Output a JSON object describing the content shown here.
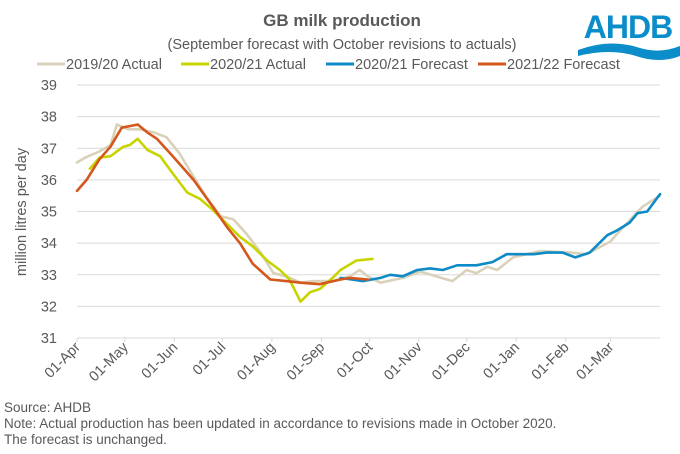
{
  "logo": {
    "text": "AHDB",
    "color": "#0a8dc9"
  },
  "footer": {
    "source": "Source: AHDB",
    "note_line1": "Note: Actual production has been updated in accordance to revisions made in October 2020.",
    "note_line2": "The forecast is unchanged."
  },
  "chart_data": {
    "type": "line",
    "title": "GB milk production",
    "subtitle": "(September forecast with October revisions to actuals)",
    "xlabel": "",
    "ylabel": "million litres per day",
    "x_unit": "days since 01-Apr",
    "xlim": [
      0,
      365
    ],
    "ylim": [
      31,
      39
    ],
    "yticks": [
      "31",
      "32",
      "33",
      "34",
      "35",
      "36",
      "37",
      "38",
      "39"
    ],
    "xticks": [
      {
        "label": "01-Apr",
        "day": 0
      },
      {
        "label": "01-May",
        "day": 30
      },
      {
        "label": "01-Jun",
        "day": 61
      },
      {
        "label": "01-Jul",
        "day": 91
      },
      {
        "label": "01-Aug",
        "day": 122
      },
      {
        "label": "01-Sep",
        "day": 153
      },
      {
        "label": "01-Oct",
        "day": 183
      },
      {
        "label": "01-Nov",
        "day": 214
      },
      {
        "label": "01-Dec",
        "day": 244
      },
      {
        "label": "01-Jan",
        "day": 275
      },
      {
        "label": "01-Feb",
        "day": 306
      },
      {
        "label": "01-Mar",
        "day": 334
      }
    ],
    "grid": true,
    "legend_position": "top",
    "series": [
      {
        "name": "2019/20 Actual",
        "color": "#d9d1b9",
        "points": [
          [
            0,
            36.55
          ],
          [
            5,
            36.7
          ],
          [
            14,
            36.9
          ],
          [
            21,
            37.1
          ],
          [
            25,
            37.75
          ],
          [
            32,
            37.6
          ],
          [
            39,
            37.6
          ],
          [
            48,
            37.5
          ],
          [
            56,
            37.35
          ],
          [
            64,
            36.85
          ],
          [
            73,
            36.1
          ],
          [
            81,
            35.45
          ],
          [
            90,
            34.85
          ],
          [
            98,
            34.75
          ],
          [
            106,
            34.3
          ],
          [
            115,
            33.7
          ],
          [
            123,
            33.05
          ],
          [
            131,
            32.95
          ],
          [
            140,
            32.75
          ],
          [
            148,
            32.8
          ],
          [
            160,
            32.8
          ],
          [
            171,
            32.95
          ],
          [
            177,
            33.15
          ],
          [
            182,
            32.95
          ],
          [
            190,
            32.75
          ],
          [
            204,
            32.9
          ],
          [
            215,
            33.1
          ],
          [
            235,
            32.8
          ],
          [
            244,
            33.15
          ],
          [
            250,
            33.05
          ],
          [
            257,
            33.25
          ],
          [
            263,
            33.15
          ],
          [
            273,
            33.55
          ],
          [
            290,
            33.75
          ],
          [
            309,
            33.7
          ],
          [
            319,
            33.65
          ],
          [
            334,
            34.05
          ],
          [
            340,
            34.4
          ],
          [
            354,
            35.15
          ],
          [
            365,
            35.5
          ]
        ]
      },
      {
        "name": "2020/21 Actual",
        "color": "#c8d400",
        "points": [
          [
            8,
            36.35
          ],
          [
            14,
            36.7
          ],
          [
            21,
            36.75
          ],
          [
            29,
            37.05
          ],
          [
            33,
            37.1
          ],
          [
            38,
            37.3
          ],
          [
            44,
            36.95
          ],
          [
            52,
            36.75
          ],
          [
            60,
            36.2
          ],
          [
            69,
            35.6
          ],
          [
            77,
            35.4
          ],
          [
            85,
            35.05
          ],
          [
            94,
            34.6
          ],
          [
            102,
            34.2
          ],
          [
            110,
            33.9
          ],
          [
            119,
            33.45
          ],
          [
            127,
            33.15
          ],
          [
            133,
            32.85
          ],
          [
            140,
            32.15
          ],
          [
            146,
            32.45
          ],
          [
            152,
            32.55
          ],
          [
            160,
            32.9
          ],
          [
            165,
            33.15
          ],
          [
            175,
            33.45
          ],
          [
            185,
            33.5
          ]
        ]
      },
      {
        "name": "2020/21 Forecast",
        "color": "#0e8ac6",
        "points": [
          [
            165,
            32.9
          ],
          [
            179,
            32.8
          ],
          [
            190,
            32.9
          ],
          [
            196,
            33.0
          ],
          [
            204,
            32.95
          ],
          [
            213,
            33.15
          ],
          [
            221,
            33.2
          ],
          [
            229,
            33.15
          ],
          [
            238,
            33.3
          ],
          [
            250,
            33.3
          ],
          [
            260,
            33.4
          ],
          [
            269,
            33.65
          ],
          [
            286,
            33.65
          ],
          [
            294,
            33.7
          ],
          [
            304,
            33.7
          ],
          [
            312,
            33.55
          ],
          [
            321,
            33.7
          ],
          [
            332,
            34.25
          ],
          [
            338,
            34.4
          ],
          [
            346,
            34.65
          ],
          [
            351,
            34.95
          ],
          [
            357,
            35.0
          ],
          [
            365,
            35.55
          ]
        ]
      },
      {
        "name": "2021/22 Forecast",
        "color": "#d4571c",
        "points": [
          [
            0,
            35.65
          ],
          [
            6,
            36.0
          ],
          [
            14,
            36.65
          ],
          [
            21,
            37.05
          ],
          [
            28,
            37.65
          ],
          [
            38,
            37.75
          ],
          [
            44,
            37.5
          ],
          [
            50,
            37.3
          ],
          [
            60,
            36.75
          ],
          [
            73,
            36.0
          ],
          [
            85,
            35.15
          ],
          [
            94,
            34.5
          ],
          [
            102,
            34.0
          ],
          [
            110,
            33.35
          ],
          [
            121,
            32.85
          ],
          [
            131,
            32.8
          ],
          [
            140,
            32.75
          ],
          [
            152,
            32.7
          ],
          [
            165,
            32.85
          ],
          [
            171,
            32.9
          ],
          [
            182,
            32.85
          ]
        ]
      }
    ]
  }
}
